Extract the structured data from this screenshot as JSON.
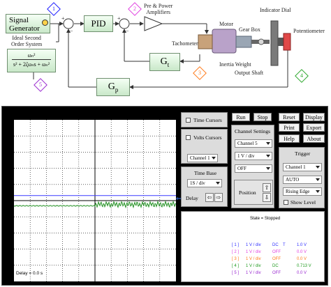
{
  "diagram": {
    "signal_generator": "Signal\nGenerator",
    "pid": "PID",
    "amplifiers": "Pre & Power\nAmplifiers",
    "motor": "Motor",
    "tachometer": "Tachometer",
    "gear_box": "Gear Box",
    "inertia_weight": "Inertia Weight",
    "output_shaft": "Output Shaft",
    "indicator_dial": "Indicator Dial",
    "potentiometer": "Potentiometer",
    "ideal_system": "Ideal Second\nOrder System",
    "gt": "G",
    "gt_sub": "t",
    "gp": "G",
    "gp_sub": "p",
    "tf_num": "ωₙ²",
    "tf_den": "s² + 2ζωₙs + ωₙ²",
    "plus": "+",
    "minus": "−",
    "markers": [
      "1",
      "2",
      "3",
      "4",
      "5"
    ],
    "colors": {
      "m1": "#1a1aff",
      "m2": "#e040e0",
      "m3": "#ff7a1a",
      "m4": "#2ea82e",
      "m5": "#9a2ad0"
    }
  },
  "scope": {
    "time_cursors": "Time Cursors",
    "volts_cursors": "Volts Cursors",
    "cursor_channel": "Channel 1",
    "time_base_title": "Time Base",
    "time_base_value": "1S / div",
    "delay_label": "Delay",
    "buttons": {
      "run": "Run",
      "stop": "Stop",
      "reset": "Reset",
      "display": "Display",
      "print": "Print",
      "export": "Export",
      "help": "Help",
      "about": "About"
    },
    "channel_settings_title": "Channel Settings",
    "channel_select": "Channel 5",
    "volts_div": "1 V / div",
    "coupling": "OFF",
    "position_label": "Position",
    "trigger_title": "Trigger",
    "trigger_channel": "Channel 1",
    "trigger_mode": "AUTO",
    "trigger_edge": "Rising Edge",
    "show_level": "Show Level",
    "state_text": "State = Stopped",
    "delay_readout": "Delay = 0.0 s",
    "channel_status": [
      {
        "id": "[ 1 ]",
        "scale": "1 V / div",
        "mode": "DC",
        "t": "T",
        "value": "1.0 V",
        "color": "#3030ff"
      },
      {
        "id": "[ 2 ]",
        "scale": "1 V / div",
        "mode": "OFF",
        "t": "",
        "value": "0.0 V",
        "color": "#e040e0"
      },
      {
        "id": "[ 3 ]",
        "scale": "1 V / div",
        "mode": "OFF",
        "t": "",
        "value": "0.0 V",
        "color": "#ff7a1a"
      },
      {
        "id": "[ 4 ]",
        "scale": "1 V / div",
        "mode": "DC",
        "t": "",
        "value": "0.713 V",
        "color": "#1f9a1f"
      },
      {
        "id": "[ 5 ]",
        "scale": "1 V / div",
        "mode": "OFF",
        "t": "",
        "value": "0.0 V",
        "color": "#9a2ad0"
      }
    ],
    "trace_colors": {
      "ch1": "#3a3aff",
      "ch4": "#1f8f1f"
    }
  }
}
